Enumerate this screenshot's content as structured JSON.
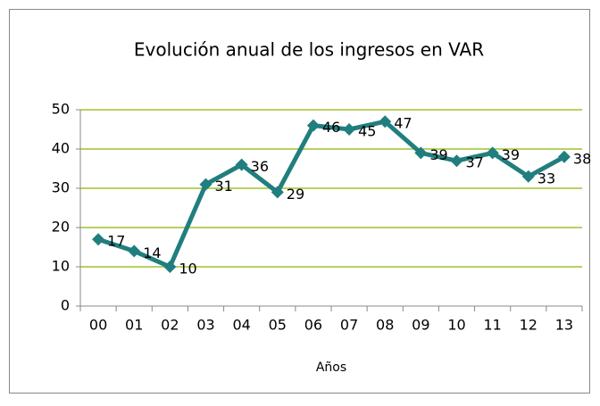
{
  "chart_data": {
    "type": "line",
    "title": "Evolución anual de los ingresos en VAR",
    "x_label": "Años",
    "categories": [
      "00",
      "01",
      "02",
      "03",
      "04",
      "05",
      "06",
      "07",
      "08",
      "09",
      "10",
      "11",
      "12",
      "13"
    ],
    "series": [
      {
        "name": "Ingresos",
        "color": "#217e7e",
        "values": [
          17,
          14,
          10,
          31,
          36,
          29,
          46,
          45,
          47,
          39,
          37,
          39,
          33,
          38
        ]
      }
    ],
    "ylim": [
      0,
      50
    ],
    "yticks": [
      0,
      10,
      20,
      30,
      40,
      50
    ],
    "grid": true,
    "grid_color": "#9fc32a",
    "data_labels": true
  }
}
